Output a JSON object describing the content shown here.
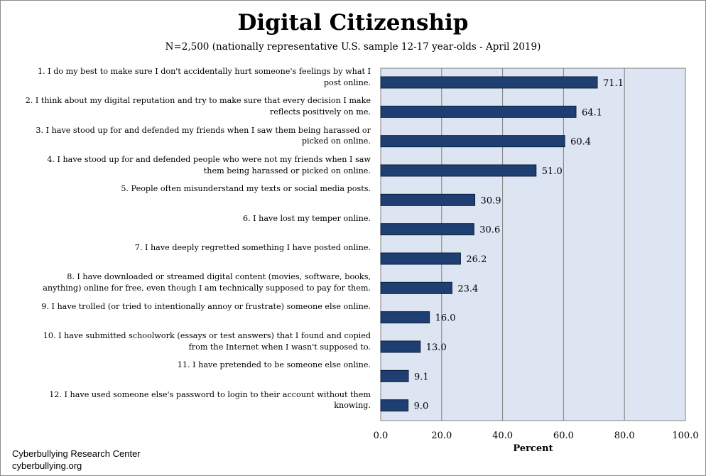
{
  "title": "Digital Citizenship",
  "subtitle": "N=2,500 (nationally representative U.S. sample 12-17 year-olds - April 2019)",
  "footer": {
    "line1": "Cyberbullying Research Center",
    "line2": "cyberbullying.org"
  },
  "colors": {
    "bar": "#1f3f73",
    "bar_stroke": "#0b1e3d",
    "plot_bg": "#dce5f1",
    "grid": "#7f7f7f"
  },
  "chart_data": {
    "type": "bar",
    "orientation": "horizontal",
    "title": "Digital Citizenship",
    "xlabel": "Percent",
    "ylabel": "",
    "xlim": [
      0,
      100
    ],
    "xticks": [
      "0.0",
      "20.0",
      "40.0",
      "60.0",
      "80.0",
      "100.0"
    ],
    "grid": true,
    "categories": [
      [
        "1. I do my best to make sure I don't accidentally hurt someone's feelings by what I",
        "post online."
      ],
      [
        "2. I think about my digital reputation and try to make sure that every decision I make",
        "reflects positively on me."
      ],
      [
        "3. I have stood up for and defended my friends when I saw them being harassed or",
        "picked on online."
      ],
      [
        "4. I have stood up for and defended people who were not my friends when I saw",
        "them being harassed or picked on online."
      ],
      [
        "5. People often misunderstand my texts or social media posts."
      ],
      [
        "6. I have lost my temper online."
      ],
      [
        "7. I have deeply regretted something I have posted online."
      ],
      [
        "8. I have downloaded or streamed digital content (movies, software, books,",
        "anything) online for free, even though I am technically supposed to pay for them."
      ],
      [
        "9. I have trolled (or tried to intentionally annoy or frustrate) someone else online."
      ],
      [
        "10. I have submitted schoolwork (essays or test answers) that I found and copied",
        "from the Internet when I wasn't supposed to."
      ],
      [
        "11. I have pretended to be someone else online."
      ],
      [
        "12. I have used someone else's password to login to their account without them",
        "knowing."
      ]
    ],
    "values": [
      71.1,
      64.1,
      60.4,
      51.0,
      30.9,
      30.6,
      26.2,
      23.4,
      16.0,
      13.0,
      9.1,
      9.0
    ],
    "value_labels": [
      "71.1",
      "64.1",
      "60.4",
      "51.0",
      "30.9",
      "30.6",
      "26.2",
      "23.4",
      "16.0",
      "13.0",
      "9.1",
      "9.0"
    ]
  }
}
